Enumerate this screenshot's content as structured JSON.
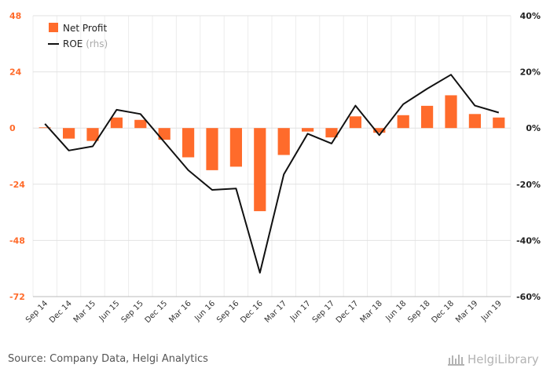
{
  "chart_data": {
    "type": "bar",
    "categories": [
      "Sep 14",
      "Dec 14",
      "Mar 15",
      "Jun 15",
      "Sep 15",
      "Dec 15",
      "Mar 16",
      "Jun 16",
      "Sep 16",
      "Dec 16",
      "Mar 17",
      "Jun 17",
      "Sep 17",
      "Dec 17",
      "Mar 18",
      "Jun 18",
      "Sep 18",
      "Dec 18",
      "Mar 19",
      "Jun 19"
    ],
    "series": [
      {
        "name": "Net Profit",
        "type": "bar",
        "axis": "left",
        "color": "#ff6b2b",
        "values": [
          0.3,
          -4.5,
          -5.5,
          4.5,
          3.5,
          -5,
          -12.5,
          -18,
          -16.5,
          -35.5,
          -11.5,
          -1.5,
          -4,
          5,
          -2,
          5.5,
          9.5,
          14,
          6,
          4.5
        ]
      },
      {
        "name": "ROE",
        "name_suffix": "(rhs)",
        "type": "line",
        "axis": "right",
        "color": "#111111",
        "values": [
          1.5,
          -8,
          -6.5,
          6.5,
          5,
          -5,
          -15,
          -22,
          -21.5,
          -51.5,
          -16.5,
          -2,
          -5.5,
          8,
          -2.5,
          8.5,
          14,
          19,
          8,
          5.5
        ]
      }
    ],
    "yleft": {
      "ticks": [
        "48",
        "24",
        "0",
        "-24",
        "-48",
        "-72"
      ],
      "range": [
        -72,
        48
      ]
    },
    "yright": {
      "ticks": [
        "40%",
        "20%",
        "0%",
        "-20%",
        "-40%",
        "-60%"
      ],
      "range": [
        -60,
        40
      ]
    },
    "grid": true,
    "legend": "top-left"
  },
  "footer": {
    "source": "Source: Company Data, Helgi Analytics",
    "logo_text": "HelgiLibrary"
  }
}
